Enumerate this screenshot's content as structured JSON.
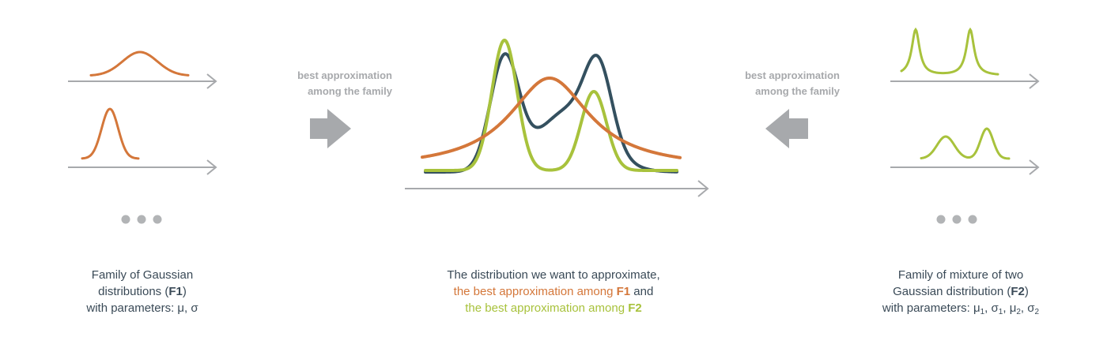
{
  "colors": {
    "orange": "#d4773a",
    "green": "#a8c23c",
    "dark": "#34505f",
    "gray": "#a7a9ac",
    "text": "#3a4a57"
  },
  "left_arrow_label": {
    "line1": "best approximation",
    "line2": "among the family"
  },
  "right_arrow_label": {
    "line1": "best approximation",
    "line2": "among the family"
  },
  "left_caption": {
    "line1": "Family of Gaussian",
    "line2_pre": "distributions (",
    "line2_bold": "F1",
    "line2_post": ")",
    "line3": "with parameters: μ, σ"
  },
  "center_caption": {
    "line1": "The distribution we want to approximate,",
    "line2_text": "the best approximation among ",
    "line2_bold": "F1",
    "line2_tail": " and",
    "line3_text": "the best approximation among ",
    "line3_bold": "F2"
  },
  "right_caption": {
    "line1": "Family of mixture of two",
    "line2_pre": "Gaussian distribution (",
    "line2_bold": "F2",
    "line2_post": ")",
    "line3_pre": "with parameters: ",
    "mu": "μ",
    "sigma": "σ",
    "sub1": "1",
    "sub2": "2"
  },
  "ellipsis_icon": "more-dots-icon"
}
